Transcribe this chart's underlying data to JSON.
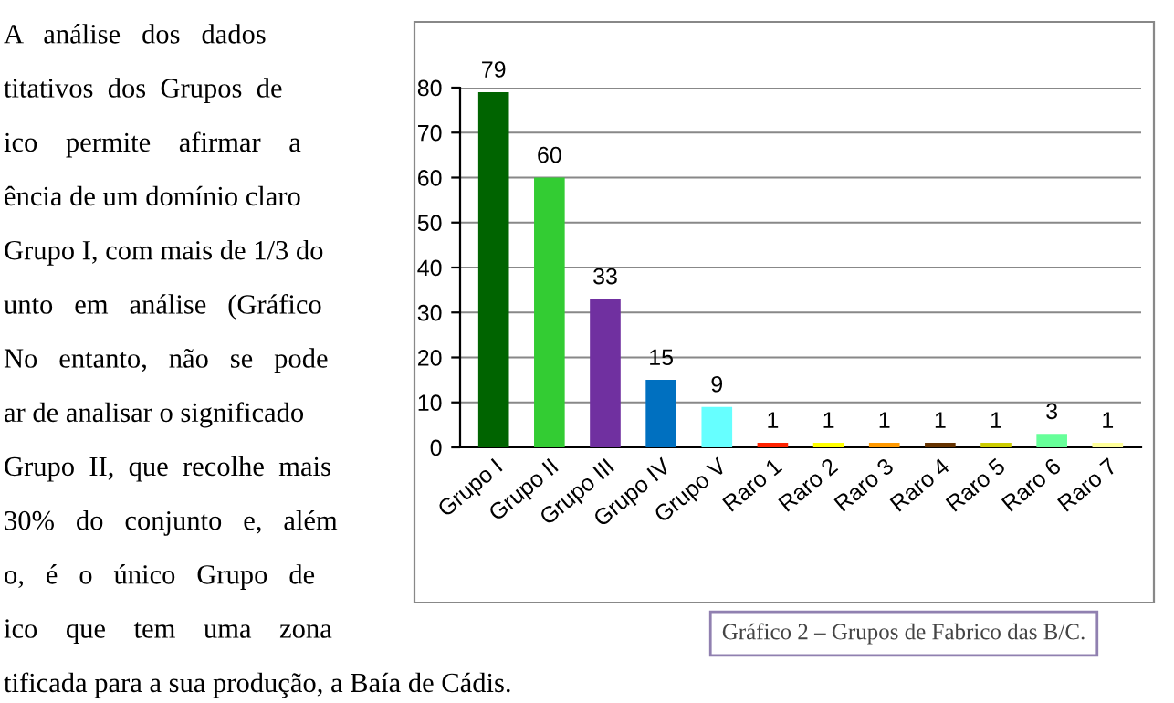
{
  "chart_data": {
    "type": "bar",
    "categories": [
      "Grupo I",
      "Grupo II",
      "Grupo III",
      "Grupo IV",
      "Grupo V",
      "Raro 1",
      "Raro 2",
      "Raro 3",
      "Raro 4",
      "Raro 5",
      "Raro 6",
      "Raro 7"
    ],
    "values": [
      79,
      60,
      33,
      15,
      9,
      1,
      1,
      1,
      1,
      1,
      3,
      1
    ],
    "colors": [
      "#006400",
      "#33cc33",
      "#7030a0",
      "#0070c0",
      "#66ffff",
      "#ff2200",
      "#ffff00",
      "#ff9900",
      "#663300",
      "#cccc00",
      "#66ff99",
      "#ffff99"
    ],
    "ylim": [
      0,
      80
    ],
    "yticks": [
      0,
      10,
      20,
      30,
      40,
      50,
      60,
      70,
      80
    ],
    "grid": "y",
    "data_labels": true,
    "annotations": [
      "A   análise   dos   dados",
      "titativos  dos  Grupos  de",
      "ico    permite    afirmar    a",
      "ência de um domínio claro",
      "Grupo I, com mais de 1/3 do",
      "unto   em   análise   (Gráfico",
      "No   entanto,   não   se   pode",
      "ar de analisar o significado",
      "Grupo  II,  que  recolhe  mais",
      "30%   do   conjunto   e,   além",
      "o,   é   o   único   Grupo   de",
      "ico    que    tem    uma    zona",
      "tificada para a sua produção, a Baía de Cádis.",
      "Gráfico 2 – Grupos de Fabrico das B/C."
    ]
  }
}
